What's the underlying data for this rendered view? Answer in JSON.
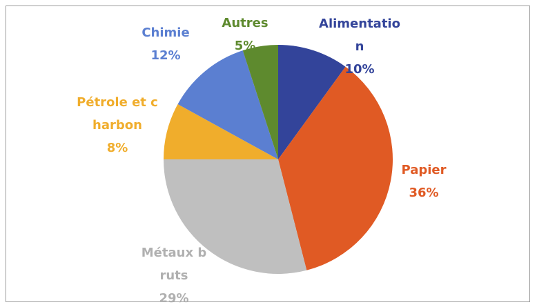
{
  "chart_data": {
    "type": "pie",
    "categories": [
      "Alimentation",
      "Papier",
      "Métaux bruts",
      "Pétrole et charbon",
      "Chimie",
      "Autres"
    ],
    "values": [
      10,
      36,
      29,
      8,
      12,
      5
    ],
    "value_labels": [
      "10%",
      "36%",
      "29%",
      "8%",
      "12%",
      "5%"
    ],
    "colors": [
      "#33449a",
      "#e05a24",
      "#bfbfbf",
      "#f0ad2c",
      "#5b7fd1",
      "#5e8a2e"
    ]
  }
}
